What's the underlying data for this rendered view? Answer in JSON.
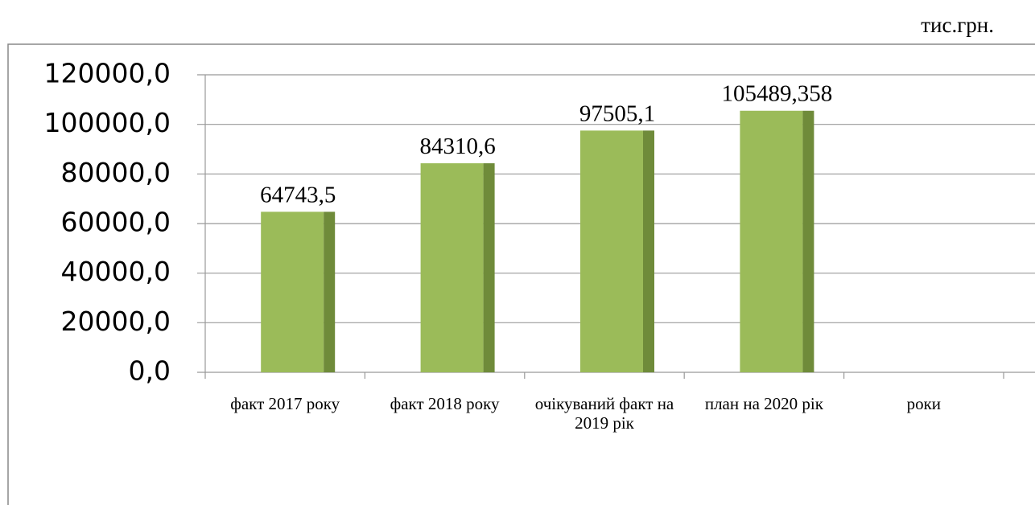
{
  "chart_data": {
    "type": "bar",
    "unit_label": "тис.грн.",
    "categories": [
      "факт 2017 року",
      "факт 2018 року",
      "очікуваний факт на 2019 рік",
      "план на 2020 рік",
      "роки"
    ],
    "values": [
      64743.5,
      84310.6,
      97505.1,
      105489.358,
      null
    ],
    "value_labels": [
      "64743,5",
      "84310,6",
      "97505,1",
      "105489,358",
      null
    ],
    "color": "#9bbb59",
    "side_color": "#6f8b3a",
    "ylim": [
      0,
      120000
    ],
    "yticks": [
      {
        "value": 0,
        "label": "0,0"
      },
      {
        "value": 20000,
        "label": "20000,0"
      },
      {
        "value": 40000,
        "label": "40000,0"
      },
      {
        "value": 60000,
        "label": "60000,0"
      },
      {
        "value": 80000,
        "label": "80000,0"
      },
      {
        "value": 100000,
        "label": "100000,0"
      },
      {
        "value": 120000,
        "label": "120000,0"
      }
    ],
    "grid": true
  }
}
